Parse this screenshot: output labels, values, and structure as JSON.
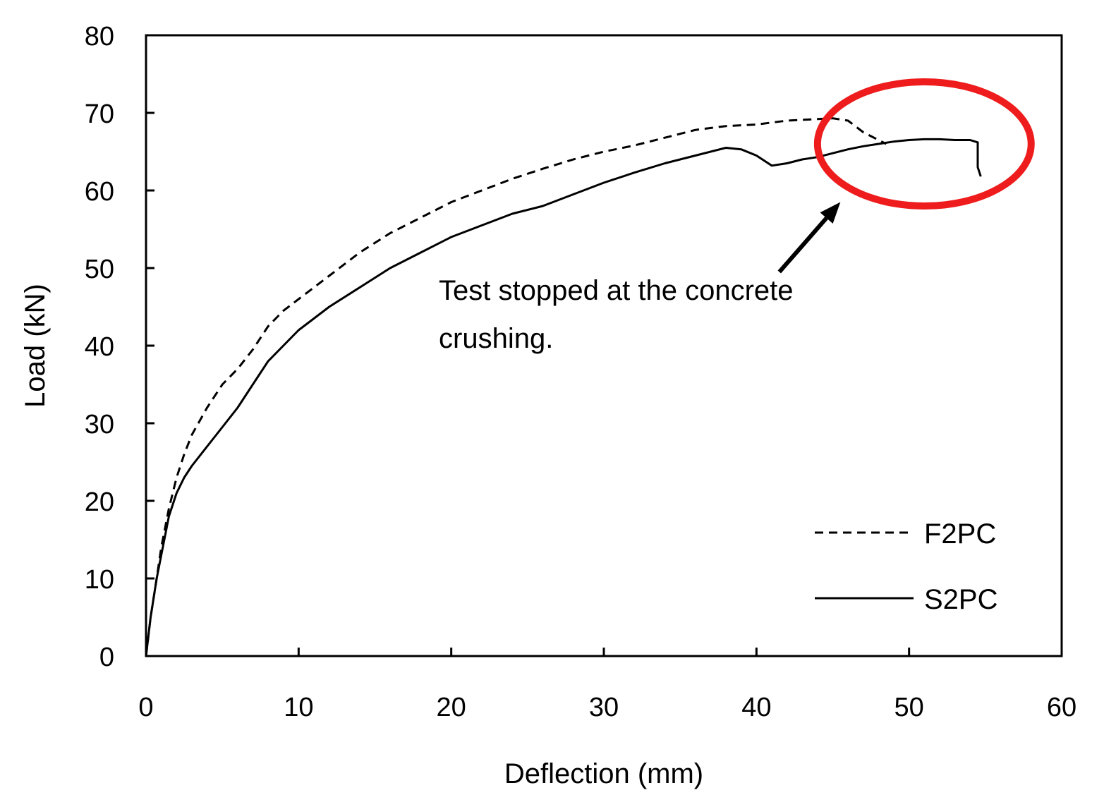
{
  "chart_data": {
    "type": "line",
    "title": "",
    "xlabel": "Deflection (mm)",
    "ylabel": "Load (kN)",
    "xlim": [
      0,
      60
    ],
    "ylim": [
      0,
      80
    ],
    "xticks": [
      0,
      10,
      20,
      30,
      40,
      50,
      60
    ],
    "yticks": [
      0,
      10,
      20,
      30,
      40,
      50,
      60,
      70,
      80
    ],
    "grid": false,
    "legend_position": "bottom-right",
    "series": [
      {
        "name": "F2PC",
        "style": "dashed",
        "color": "#000000",
        "x": [
          0,
          0.3,
          0.7,
          1.0,
          1.5,
          2.0,
          2.5,
          3.0,
          4.0,
          5.0,
          6.0,
          7.0,
          8.0,
          9.0,
          10.0,
          11.0,
          12.0,
          14.0,
          16.0,
          18.0,
          20.0,
          22.0,
          24.0,
          26.0,
          28.0,
          30.0,
          32.0,
          34.0,
          36.0,
          38.0,
          40.0,
          42.0,
          44.0,
          45.0,
          46.0,
          47.0,
          48.0,
          48.5
        ],
        "y": [
          0,
          5,
          10,
          14,
          19,
          23,
          26,
          28.5,
          32,
          35,
          37,
          39.5,
          42.5,
          44.5,
          46,
          47.5,
          49,
          52,
          54.5,
          56.5,
          58.5,
          60,
          61.5,
          62.8,
          64,
          65,
          65.8,
          66.8,
          67.8,
          68.3,
          68.5,
          69,
          69.2,
          69.3,
          69,
          67.5,
          66.5,
          66
        ]
      },
      {
        "name": "S2PC",
        "style": "solid",
        "color": "#000000",
        "x": [
          0,
          0.3,
          0.7,
          1.0,
          1.5,
          2.0,
          2.5,
          3.0,
          4.0,
          5.0,
          6.0,
          7.0,
          8.0,
          9.0,
          10.0,
          11.0,
          12.0,
          14.0,
          16.0,
          18.0,
          20.0,
          22.0,
          24.0,
          26.0,
          28.0,
          30.0,
          32.0,
          34.0,
          36.0,
          38.0,
          39.0,
          40.0,
          41.0,
          42.0,
          43.0,
          44.0,
          45.0,
          46.0,
          47.0,
          48.0,
          49.0,
          50.0,
          51.0,
          52.0,
          53.0,
          54.0,
          54.5,
          54.5,
          54.7
        ],
        "y": [
          0,
          5,
          10,
          13,
          18,
          21,
          23,
          24.5,
          27,
          29.5,
          32,
          35,
          38,
          40,
          42,
          43.5,
          45,
          47.5,
          50,
          52,
          54,
          55.5,
          57,
          58,
          59.5,
          61,
          62.3,
          63.5,
          64.5,
          65.5,
          65.3,
          64.5,
          63.2,
          63.5,
          64,
          64.3,
          64.8,
          65.3,
          65.7,
          66,
          66.3,
          66.5,
          66.6,
          66.6,
          66.5,
          66.5,
          66.2,
          63,
          61.8
        ]
      }
    ],
    "annotation": {
      "text_lines": [
        "Test stopped at the concrete",
        "crushing."
      ],
      "highlight_color": "#ee1c1c",
      "highlight_center": [
        51,
        66
      ],
      "highlight_radius": [
        7,
        8
      ],
      "arrow_tail": [
        41.5,
        49.5
      ],
      "arrow_head": [
        45.5,
        58.5
      ]
    }
  }
}
